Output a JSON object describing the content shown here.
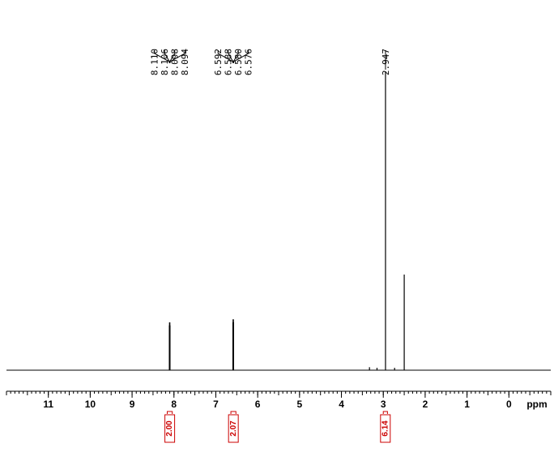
{
  "chart_data": {
    "type": "nmr",
    "x_label": "ppm",
    "xlim": [
      12.0,
      -1.0
    ],
    "xticks": [
      11,
      10,
      9,
      8,
      7,
      6,
      5,
      4,
      3,
      2,
      1,
      0
    ],
    "color": "#000000",
    "x": [
      8.11,
      8.106,
      8.098,
      8.094,
      6.592,
      6.588,
      6.58,
      6.576,
      3.33,
      3.15,
      2.947,
      2.73,
      2.5
    ],
    "values": [
      15,
      16,
      16,
      15,
      16,
      17,
      17,
      16,
      1,
      0.8,
      100,
      0.8,
      32
    ],
    "peak_labels": [
      {
        "value": 8.11,
        "label": "8.110"
      },
      {
        "value": 8.106,
        "label": "8.106"
      },
      {
        "value": 8.098,
        "label": "8.098"
      },
      {
        "value": 8.094,
        "label": "8.094"
      },
      {
        "value": 6.592,
        "label": "6.592"
      },
      {
        "value": 6.588,
        "label": "6.588"
      },
      {
        "value": 6.58,
        "label": "6.580"
      },
      {
        "value": 6.576,
        "label": "6.576"
      },
      {
        "value": 2.947,
        "label": "2.947"
      }
    ],
    "integral_color": "#cc0000",
    "integrals": [
      {
        "range": [
          8.16,
          8.04
        ],
        "value": 2.0,
        "label": "2.00"
      },
      {
        "range": [
          6.64,
          6.52
        ],
        "value": 2.07,
        "label": "2.07"
      },
      {
        "range": [
          3.0,
          2.9
        ],
        "value": 6.14,
        "label": "6.14"
      }
    ]
  }
}
